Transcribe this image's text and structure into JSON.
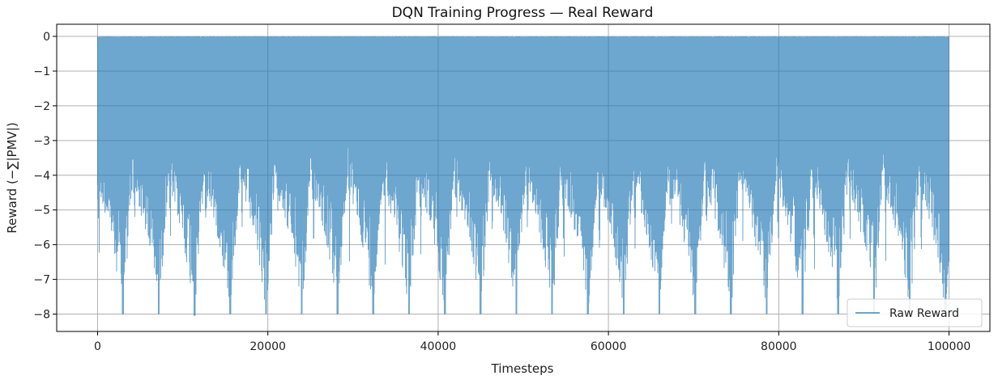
{
  "chart_data": {
    "type": "line",
    "title": "DQN Training Progress — Real Reward",
    "xlabel": "Timesteps",
    "ylabel": "Reward (−∑|PMV|)",
    "xlim": [
      -4800,
      104800
    ],
    "ylim": [
      -8.5,
      0.35
    ],
    "xticks": [
      0,
      20000,
      40000,
      60000,
      80000,
      100000
    ],
    "yticks": [
      0,
      -1,
      -2,
      -3,
      -4,
      -5,
      -6,
      -7,
      -8
    ],
    "ytick_labels": [
      "0",
      "−1",
      "−2",
      "−3",
      "−4",
      "−5",
      "−6",
      "−7",
      "−8"
    ],
    "grid": true,
    "legend_position": "bottom-right",
    "series": [
      {
        "name": "Raw Reward",
        "color": "#1f77b4",
        "alpha": 0.65,
        "x_range": [
          0,
          100000
        ],
        "episode_length": 4200,
        "min_per_episode": [
          -8.0,
          -8.0,
          -8.05,
          -8.0,
          -8.0,
          -8.0,
          -8.0,
          -8.0,
          -8.0,
          -8.0,
          -8.0,
          -8.0,
          -8.0,
          -8.0,
          -8.0,
          -8.0,
          -8.0,
          -8.0,
          -8.0,
          -8.0,
          -8.0,
          -8.0,
          -8.0,
          -8.0
        ],
        "max": 0.0,
        "baseline": -2.0
      }
    ]
  }
}
